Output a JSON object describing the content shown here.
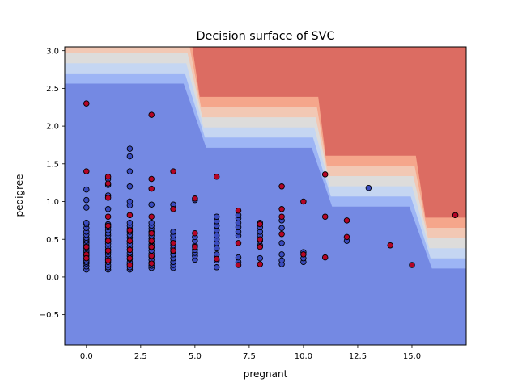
{
  "chart_data": {
    "type": "scatter",
    "title": "Decision surface of SVC",
    "xlabel": "pregnant",
    "ylabel": "pedigree",
    "xlim": [
      -1,
      17.5
    ],
    "ylim": [
      -0.9,
      3.05
    ],
    "xticks": [
      0.0,
      2.5,
      5.0,
      7.5,
      10.0,
      12.5,
      15.0
    ],
    "xtick_labels": [
      "0.0",
      "2.5",
      "5.0",
      "7.5",
      "10.0",
      "12.5",
      "15.0"
    ],
    "yticks": [
      -0.5,
      0.0,
      0.5,
      1.0,
      1.5,
      2.0,
      2.5,
      3.0
    ],
    "ytick_labels": [
      "−0.5",
      "0.0",
      "0.5",
      "1.0",
      "1.5",
      "2.0",
      "2.5",
      "3.0"
    ],
    "grid": false,
    "legend": "none",
    "colors": {
      "class_0": "#3b4cc0",
      "class_1": "#b40426",
      "surface_bands": [
        "#7489e3",
        "#9db5f5",
        "#c5d6f2",
        "#dddcdb",
        "#f2c8b4",
        "#f5a68b",
        "#dc6c62"
      ],
      "point_edge": "#000000"
    },
    "decision_boundary": {
      "description": "staircase boundary; decision value increases toward upper-right",
      "steps": [
        {
          "x_from": -1.0,
          "x_to": 4.6,
          "y_level": 2.9
        },
        {
          "x_from": 5.4,
          "x_to": 10.5,
          "y_level": 2.05
        },
        {
          "x_from": 11.2,
          "x_to": 15.0,
          "y_level": 1.27
        },
        {
          "x_from": 15.8,
          "x_to": 17.5,
          "y_level": 0.45
        }
      ],
      "band_width": 0.135
    },
    "series": [
      {
        "class": 0,
        "points": [
          [
            0,
            0.1
          ],
          [
            0,
            0.14
          ],
          [
            0,
            0.18
          ],
          [
            0,
            0.2
          ],
          [
            0,
            0.22
          ],
          [
            0,
            0.25
          ],
          [
            0,
            0.28
          ],
          [
            0,
            0.3
          ],
          [
            0,
            0.33
          ],
          [
            0,
            0.35
          ],
          [
            0,
            0.38
          ],
          [
            0,
            0.42
          ],
          [
            0,
            0.45
          ],
          [
            0,
            0.48
          ],
          [
            0,
            0.5
          ],
          [
            0,
            0.52
          ],
          [
            0,
            0.56
          ],
          [
            0,
            0.6
          ],
          [
            0,
            0.65
          ],
          [
            0,
            0.7
          ],
          [
            0,
            0.72
          ],
          [
            0,
            0.92
          ],
          [
            0,
            1.02
          ],
          [
            0,
            1.16
          ],
          [
            1,
            0.1
          ],
          [
            1,
            0.13
          ],
          [
            1,
            0.16
          ],
          [
            1,
            0.2
          ],
          [
            1,
            0.23
          ],
          [
            1,
            0.26
          ],
          [
            1,
            0.3
          ],
          [
            1,
            0.33
          ],
          [
            1,
            0.36
          ],
          [
            1,
            0.4
          ],
          [
            1,
            0.44
          ],
          [
            1,
            0.48
          ],
          [
            1,
            0.5
          ],
          [
            1,
            0.55
          ],
          [
            1,
            0.58
          ],
          [
            1,
            0.62
          ],
          [
            1,
            0.66
          ],
          [
            1,
            0.7
          ],
          [
            1,
            0.9
          ],
          [
            1,
            1.08
          ],
          [
            1,
            1.22
          ],
          [
            1,
            1.3
          ],
          [
            2,
            0.1
          ],
          [
            2,
            0.13
          ],
          [
            2,
            0.17
          ],
          [
            2,
            0.2
          ],
          [
            2,
            0.24
          ],
          [
            2,
            0.28
          ],
          [
            2,
            0.32
          ],
          [
            2,
            0.36
          ],
          [
            2,
            0.4
          ],
          [
            2,
            0.44
          ],
          [
            2,
            0.48
          ],
          [
            2,
            0.52
          ],
          [
            2,
            0.56
          ],
          [
            2,
            0.6
          ],
          [
            2,
            0.64
          ],
          [
            2,
            0.68
          ],
          [
            2,
            0.72
          ],
          [
            2,
            0.95
          ],
          [
            2,
            1.0
          ],
          [
            2,
            1.2
          ],
          [
            2,
            1.4
          ],
          [
            2,
            1.6
          ],
          [
            2,
            1.7
          ],
          [
            3,
            0.12
          ],
          [
            3,
            0.15
          ],
          [
            3,
            0.19
          ],
          [
            3,
            0.23
          ],
          [
            3,
            0.27
          ],
          [
            3,
            0.31
          ],
          [
            3,
            0.35
          ],
          [
            3,
            0.39
          ],
          [
            3,
            0.43
          ],
          [
            3,
            0.47
          ],
          [
            3,
            0.51
          ],
          [
            3,
            0.55
          ],
          [
            3,
            0.6
          ],
          [
            3,
            0.64
          ],
          [
            3,
            0.68
          ],
          [
            3,
            0.72
          ],
          [
            3,
            0.96
          ],
          [
            4,
            0.12
          ],
          [
            4,
            0.16
          ],
          [
            4,
            0.2
          ],
          [
            4,
            0.25
          ],
          [
            4,
            0.3
          ],
          [
            4,
            0.34
          ],
          [
            4,
            0.38
          ],
          [
            4,
            0.42
          ],
          [
            4,
            0.46
          ],
          [
            4,
            0.5
          ],
          [
            4,
            0.55
          ],
          [
            4,
            0.6
          ],
          [
            4,
            0.96
          ],
          [
            5,
            0.23
          ],
          [
            5,
            0.28
          ],
          [
            5,
            0.32
          ],
          [
            5,
            0.36
          ],
          [
            5,
            0.42
          ],
          [
            5,
            0.48
          ],
          [
            5,
            0.53
          ],
          [
            5,
            1.02
          ],
          [
            6,
            0.13
          ],
          [
            6,
            0.22
          ],
          [
            6,
            0.3
          ],
          [
            6,
            0.38
          ],
          [
            6,
            0.45
          ],
          [
            6,
            0.5
          ],
          [
            6,
            0.55
          ],
          [
            6,
            0.62
          ],
          [
            6,
            0.68
          ],
          [
            6,
            0.74
          ],
          [
            6,
            0.8
          ],
          [
            7,
            0.2
          ],
          [
            7,
            0.26
          ],
          [
            7,
            0.55
          ],
          [
            7,
            0.6
          ],
          [
            7,
            0.66
          ],
          [
            7,
            0.72
          ],
          [
            7,
            0.78
          ],
          [
            7,
            0.82
          ],
          [
            8,
            0.25
          ],
          [
            8,
            0.42
          ],
          [
            8,
            0.48
          ],
          [
            8,
            0.55
          ],
          [
            8,
            0.6
          ],
          [
            8,
            0.66
          ],
          [
            8,
            0.72
          ],
          [
            9,
            0.17
          ],
          [
            9,
            0.22
          ],
          [
            9,
            0.3
          ],
          [
            9,
            0.45
          ],
          [
            9,
            0.65
          ],
          [
            9,
            0.75
          ],
          [
            10,
            0.2
          ],
          [
            10,
            0.25
          ],
          [
            10,
            0.33
          ],
          [
            12,
            0.48
          ],
          [
            13,
            1.18
          ]
        ]
      },
      {
        "class": 1,
        "points": [
          [
            0,
            2.3
          ],
          [
            0,
            1.4
          ],
          [
            0,
            0.4
          ],
          [
            0,
            0.3
          ],
          [
            0,
            0.25
          ],
          [
            1,
            1.33
          ],
          [
            1,
            1.24
          ],
          [
            1,
            1.05
          ],
          [
            1,
            0.8
          ],
          [
            1,
            0.68
          ],
          [
            1,
            0.48
          ],
          [
            1,
            0.35
          ],
          [
            1,
            0.22
          ],
          [
            2,
            0.82
          ],
          [
            2,
            0.62
          ],
          [
            2,
            0.48
          ],
          [
            2,
            0.36
          ],
          [
            2,
            0.25
          ],
          [
            2,
            0.16
          ],
          [
            3,
            2.15
          ],
          [
            3,
            1.3
          ],
          [
            3,
            1.17
          ],
          [
            3,
            0.8
          ],
          [
            3,
            0.58
          ],
          [
            3,
            0.48
          ],
          [
            3,
            0.4
          ],
          [
            3,
            0.28
          ],
          [
            3,
            0.18
          ],
          [
            4,
            1.4
          ],
          [
            4,
            0.9
          ],
          [
            4,
            0.45
          ],
          [
            4,
            0.35
          ],
          [
            5,
            1.04
          ],
          [
            5,
            0.58
          ],
          [
            5,
            0.4
          ],
          [
            6,
            1.33
          ],
          [
            6,
            0.24
          ],
          [
            7,
            0.88
          ],
          [
            7,
            0.45
          ],
          [
            7,
            0.16
          ],
          [
            8,
            0.7
          ],
          [
            8,
            0.5
          ],
          [
            8,
            0.4
          ],
          [
            8,
            0.17
          ],
          [
            9,
            1.2
          ],
          [
            9,
            0.9
          ],
          [
            9,
            0.8
          ],
          [
            9,
            0.57
          ],
          [
            10,
            1.0
          ],
          [
            10,
            0.3
          ],
          [
            11,
            1.36
          ],
          [
            11,
            0.8
          ],
          [
            11,
            0.26
          ],
          [
            12,
            0.75
          ],
          [
            12,
            0.53
          ],
          [
            14,
            0.42
          ],
          [
            15,
            0.16
          ],
          [
            17,
            0.82
          ]
        ]
      }
    ]
  }
}
